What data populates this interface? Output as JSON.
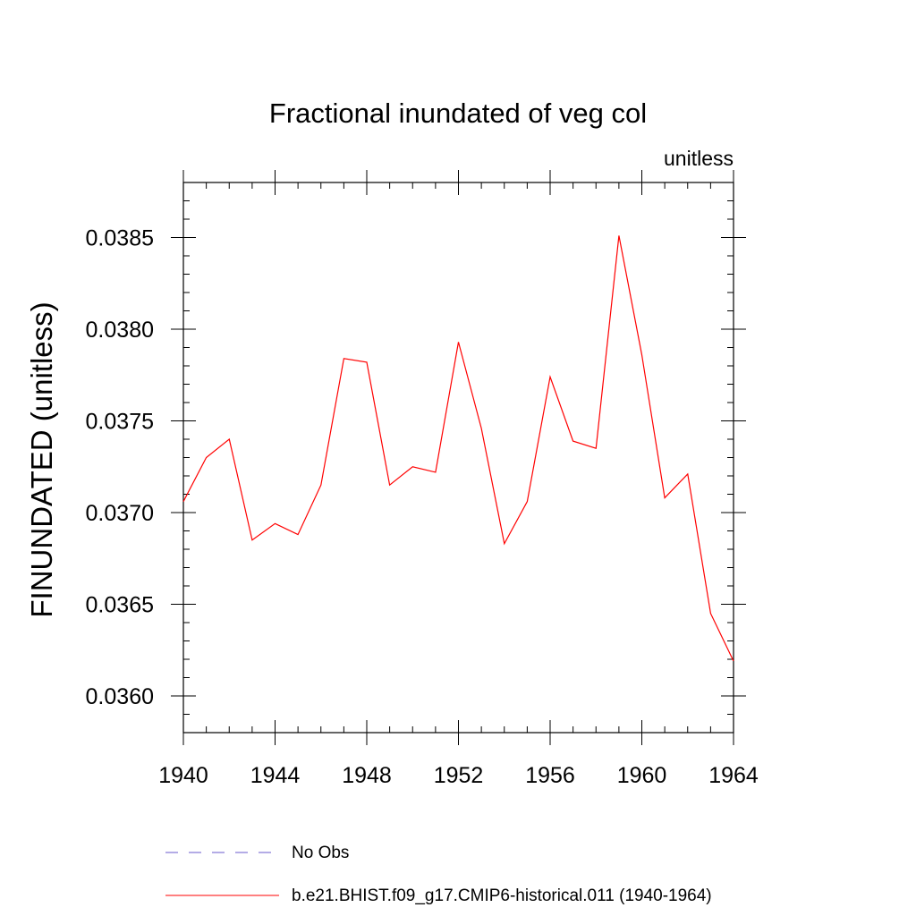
{
  "chart_data": {
    "type": "line",
    "title": "Fractional inundated of veg col",
    "units_label": "unitless",
    "ylabel": "FINUNDATED  (unitless)",
    "xlabel": "",
    "xlim": [
      1940,
      1964
    ],
    "ylim": [
      0.0358,
      0.0388
    ],
    "x_ticks": [
      1940,
      1944,
      1948,
      1952,
      1956,
      1960,
      1964
    ],
    "y_ticks": [
      "0.0360",
      "0.0365",
      "0.0370",
      "0.0375",
      "0.0380",
      "0.0385"
    ],
    "x": [
      1940,
      1941,
      1942,
      1943,
      1944,
      1945,
      1946,
      1947,
      1948,
      1949,
      1950,
      1951,
      1952,
      1953,
      1954,
      1955,
      1956,
      1957,
      1958,
      1959,
      1960,
      1961,
      1962,
      1963,
      1964
    ],
    "series": [
      {
        "name": "b.e21.BHIST.f09_g17.CMIP6-historical.011 (1940-1964)",
        "color": "#ff0000",
        "style": "solid",
        "values": [
          0.03706,
          0.0373,
          0.0374,
          0.03685,
          0.03694,
          0.03688,
          0.03715,
          0.03784,
          0.03782,
          0.03715,
          0.03725,
          0.03722,
          0.03793,
          0.03746,
          0.03683,
          0.03706,
          0.03774,
          0.03739,
          0.03735,
          0.03851,
          0.03786,
          0.03708,
          0.03721,
          0.03645,
          0.03619
        ]
      }
    ],
    "legend": [
      {
        "label": "No Obs",
        "color": "#6a5acd",
        "style": "dashed"
      },
      {
        "label": "b.e21.BHIST.f09_g17.CMIP6-historical.011 (1940-1964)",
        "color": "#ff0000",
        "style": "solid"
      }
    ],
    "legend_position": "bottom",
    "grid": false
  }
}
